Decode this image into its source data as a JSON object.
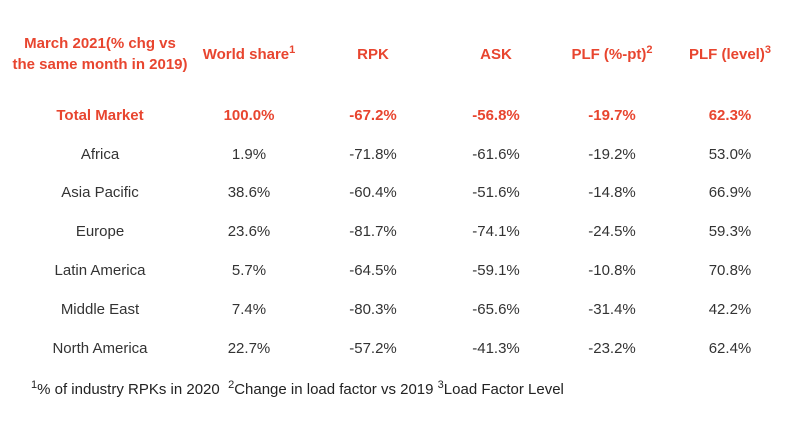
{
  "table": {
    "headers": [
      {
        "text": "March 2021(% chg vs the same month in 2019)",
        "sup": ""
      },
      {
        "text": "World share",
        "sup": "1"
      },
      {
        "text": "RPK",
        "sup": ""
      },
      {
        "text": "ASK",
        "sup": ""
      },
      {
        "text": "PLF (%-pt)",
        "sup": "2"
      },
      {
        "text": "PLF (level)",
        "sup": "3"
      }
    ],
    "rows": [
      [
        "Total Market",
        "100.0%",
        "-67.2%",
        "-56.8%",
        "-19.7%",
        "62.3%"
      ],
      [
        "Africa",
        "1.9%",
        "-71.8%",
        "-61.6%",
        "-19.2%",
        "53.0%"
      ],
      [
        "Asia Pacific",
        "38.6%",
        "-60.4%",
        "-51.6%",
        "-14.8%",
        "66.9%"
      ],
      [
        "Europe",
        "23.6%",
        "-81.7%",
        "-74.1%",
        "-24.5%",
        "59.3%"
      ],
      [
        "Latin America",
        "5.7%",
        "-64.5%",
        "-59.1%",
        "-10.8%",
        "70.8%"
      ],
      [
        "Middle East",
        "7.4%",
        "-80.3%",
        "-65.6%",
        "-31.4%",
        "42.2%"
      ],
      [
        "North America",
        "22.7%",
        "-57.2%",
        "-41.3%",
        "-23.2%",
        "62.4%"
      ]
    ]
  },
  "footnotes": [
    {
      "sup": "1",
      "text": "% of industry RPKs in 2020"
    },
    {
      "sup": "2",
      "text": "Change in load factor vs 2019"
    },
    {
      "sup": "3",
      "text": "Load Factor Level"
    }
  ],
  "colors": {
    "accent": "#e8452f",
    "text": "#333333"
  }
}
